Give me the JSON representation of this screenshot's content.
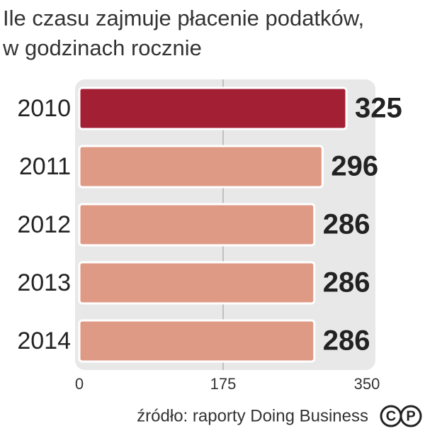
{
  "chart_data": {
    "type": "hbar",
    "title": [
      "Ile czasu zajmuje płacenie podatków,",
      "w godzinach rocznie"
    ],
    "categories": [
      "2010",
      "2011",
      "2012",
      "2013",
      "2014"
    ],
    "values": [
      325,
      296,
      286,
      286,
      286
    ],
    "colors": [
      "#a31f34",
      "#df9a85",
      "#df9a85",
      "#df9a85",
      "#df9a85"
    ],
    "xlim": [
      0,
      350
    ],
    "xticks": [
      0,
      175,
      350
    ],
    "grid": true,
    "source": "źródło: raporty Doing Business",
    "logo": [
      "C",
      "P"
    ]
  }
}
